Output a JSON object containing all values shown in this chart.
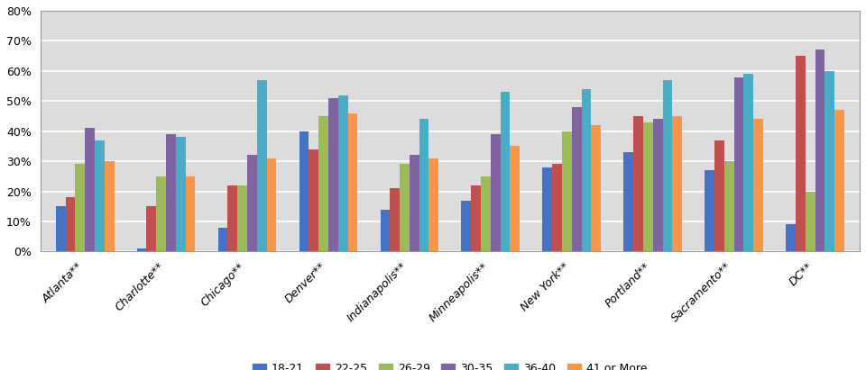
{
  "cities": [
    "Atlanta**",
    "Charlotte**",
    "Chicago**",
    "Denver**",
    "Indianapolis**",
    "Minneapolis**",
    "New York**",
    "Portland**",
    "Sacramento**",
    "DC**"
  ],
  "age_groups": [
    "18-21",
    "22-25",
    "26-29",
    "30-35",
    "36-40",
    "41 or More"
  ],
  "colors": [
    "#4472C4",
    "#C0504D",
    "#9BBB59",
    "#8064A2",
    "#4BACC6",
    "#F79646"
  ],
  "values": {
    "18-21": [
      15,
      1,
      8,
      40,
      14,
      17,
      28,
      33,
      27,
      9
    ],
    "22-25": [
      18,
      15,
      22,
      34,
      21,
      22,
      29,
      45,
      37,
      65
    ],
    "26-29": [
      29,
      25,
      22,
      45,
      29,
      25,
      40,
      43,
      30,
      20
    ],
    "30-35": [
      41,
      39,
      32,
      51,
      32,
      39,
      48,
      44,
      58,
      67
    ],
    "36-40": [
      37,
      38,
      57,
      52,
      44,
      53,
      54,
      57,
      59,
      60
    ],
    "41 or More": [
      30,
      25,
      31,
      46,
      31,
      35,
      42,
      45,
      44,
      47
    ]
  },
  "ylim_max": 80,
  "yticks": [
    0,
    10,
    20,
    30,
    40,
    50,
    60,
    70,
    80
  ],
  "ytick_labels": [
    "0%",
    "10%",
    "20%",
    "30%",
    "40%",
    "50%",
    "60%",
    "70%",
    "80%"
  ],
  "bar_width": 0.12,
  "plot_bg_color": "#DCDCDC",
  "fig_bg_color": "#FFFFFF",
  "grid_color": "#FFFFFF",
  "spine_color": "#999999",
  "legend_fontsize": 9,
  "tick_fontsize": 9,
  "xlabel_fontsize": 9
}
